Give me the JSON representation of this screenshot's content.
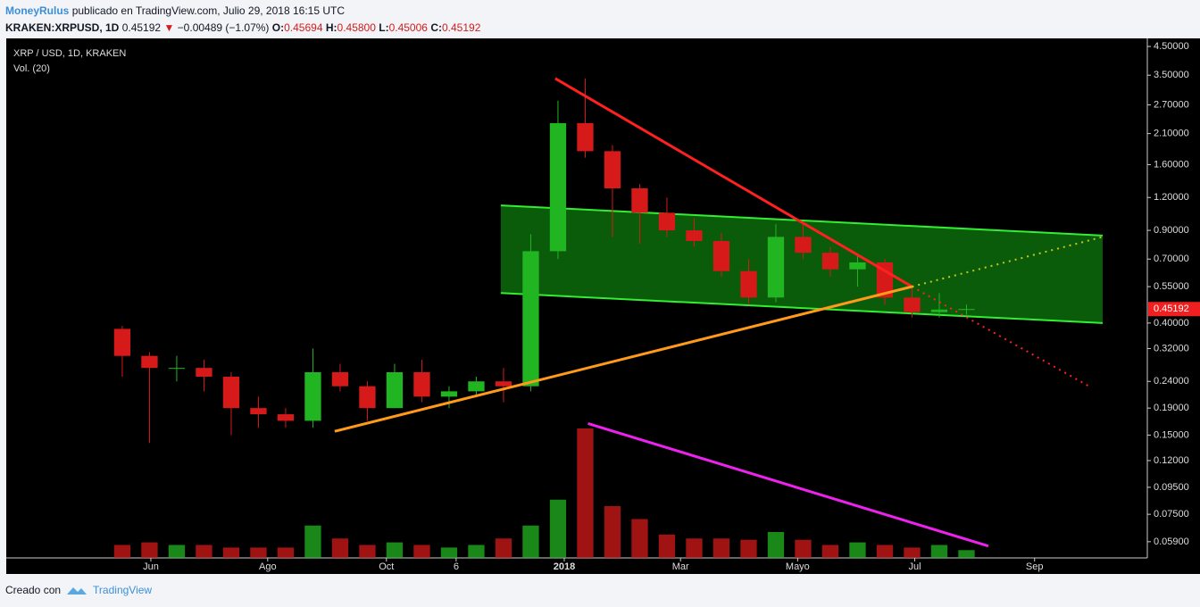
{
  "header": {
    "author": "MoneyRulus",
    "published": "publicado en TradingView.com, Julio 29, 2018 16:15 UTC",
    "symbol": "KRAKEN:XRPUSD, 1D",
    "last": "0.45192",
    "arrow": "▼",
    "change": "−0.00489 (−1.07%)",
    "open_label": "O:",
    "open": "0.45694",
    "high_label": "H:",
    "high": "0.45800",
    "low_label": "L:",
    "low": "0.45006",
    "close_label": "C:",
    "close": "0.45192"
  },
  "chart_data": {
    "type": "candlestick",
    "title": "XRP / USD, 1D, KRAKEN",
    "volume_label": "Vol. (20)",
    "open": [
      0.38,
      0.3,
      0.27,
      0.27,
      0.25,
      0.19,
      0.18,
      0.17,
      0.26,
      0.23,
      0.19,
      0.26,
      0.21,
      0.22,
      0.24,
      0.23,
      0.75,
      2.3,
      1.8,
      1.3,
      1.05,
      0.9,
      0.82,
      0.63,
      0.5,
      0.85,
      0.74,
      0.64,
      0.68,
      0.5,
      0.44,
      0.45
    ],
    "high": [
      0.39,
      0.31,
      0.3,
      0.29,
      0.26,
      0.21,
      0.19,
      0.32,
      0.28,
      0.24,
      0.28,
      0.29,
      0.23,
      0.25,
      0.27,
      0.87,
      2.8,
      3.4,
      1.9,
      1.35,
      1.2,
      1.0,
      0.88,
      0.7,
      0.95,
      0.95,
      0.78,
      0.72,
      0.7,
      0.55,
      0.52,
      0.47
    ],
    "low": [
      0.25,
      0.14,
      0.24,
      0.22,
      0.15,
      0.16,
      0.16,
      0.16,
      0.22,
      0.17,
      0.19,
      0.2,
      0.19,
      0.21,
      0.2,
      0.22,
      0.7,
      1.7,
      0.85,
      0.8,
      0.85,
      0.78,
      0.6,
      0.47,
      0.48,
      0.7,
      0.6,
      0.55,
      0.47,
      0.42,
      0.42,
      0.43
    ],
    "close": [
      0.3,
      0.27,
      0.27,
      0.25,
      0.19,
      0.18,
      0.17,
      0.26,
      0.23,
      0.19,
      0.26,
      0.21,
      0.22,
      0.24,
      0.23,
      0.75,
      2.3,
      1.8,
      1.3,
      1.05,
      0.9,
      0.82,
      0.63,
      0.5,
      0.85,
      0.74,
      0.64,
      0.68,
      0.5,
      0.44,
      0.45,
      0.452
    ],
    "volume": [
      10,
      12,
      10,
      10,
      8,
      8,
      8,
      25,
      15,
      10,
      12,
      10,
      8,
      10,
      15,
      25,
      45,
      100,
      40,
      30,
      18,
      15,
      15,
      14,
      20,
      14,
      10,
      12,
      10,
      8,
      10,
      6
    ],
    "volume_lim": [
      0,
      100
    ],
    "log_scale": true,
    "up_color": "#22b522",
    "down_color": "#d61a1a",
    "ylim": [
      0.0512,
      4.83
    ],
    "yticks": [
      {
        "value": 4.5,
        "label": "4.50000"
      },
      {
        "value": 3.5,
        "label": "3.50000"
      },
      {
        "value": 2.7,
        "label": "2.70000"
      },
      {
        "value": 2.1,
        "label": "2.10000"
      },
      {
        "value": 1.6,
        "label": "1.60000"
      },
      {
        "value": 1.2,
        "label": "1.20000"
      },
      {
        "value": 0.9,
        "label": "0.90000"
      },
      {
        "value": 0.7,
        "label": "0.70000"
      },
      {
        "value": 0.55,
        "label": "0.55000"
      },
      {
        "value": 0.4,
        "label": "0.40000"
      },
      {
        "value": 0.32,
        "label": "0.32000"
      },
      {
        "value": 0.24,
        "label": "0.24000"
      },
      {
        "value": 0.19,
        "label": "0.19000"
      },
      {
        "value": 0.15,
        "label": "0.15000"
      },
      {
        "value": 0.12,
        "label": "0.12000"
      },
      {
        "value": 0.095,
        "label": "0.09500"
      },
      {
        "value": 0.075,
        "label": "0.07500"
      },
      {
        "value": 0.059,
        "label": "0.05900"
      }
    ],
    "last_price": 0.45192,
    "last_color": "#f02020",
    "xlim": [
      -4.26,
      37.64
    ],
    "xticks": [
      {
        "value": 1.05,
        "label": "Jun"
      },
      {
        "value": 5.34,
        "label": "Ago"
      },
      {
        "value": 9.7,
        "label": "Oct"
      },
      {
        "value": 12.26,
        "label": "6"
      },
      {
        "value": 16.23,
        "label": "2018"
      },
      {
        "value": 20.5,
        "label": "Mar"
      },
      {
        "value": 24.8,
        "label": "Mayo"
      },
      {
        "value": 29.1,
        "label": "Jul"
      },
      {
        "value": 33.5,
        "label": "Sep"
      }
    ],
    "channel": {
      "color": "#0a5c0a",
      "edge": "#33ee33",
      "top": [
        13.9,
        1.12,
        36,
        0.86
      ],
      "bottom": [
        13.9,
        0.52,
        36,
        0.4
      ]
    },
    "lines": [
      {
        "color": "#ff2020",
        "points": [
          15.9,
          3.4,
          29,
          0.55
        ],
        "dash": false
      },
      {
        "color": "#ff2020",
        "points": [
          29,
          0.55,
          35.5,
          0.23
        ],
        "dash": true
      },
      {
        "color": "#ff9a1a",
        "points": [
          7.8,
          0.155,
          29,
          0.55
        ],
        "dash": false
      },
      {
        "color": "#c8c81a",
        "points": [
          29,
          0.55,
          36,
          0.85
        ],
        "dash": true
      },
      {
        "color": "#ee22ee",
        "points": [
          17.1,
          0.166,
          31.8,
          0.0568
        ],
        "dash": false
      }
    ]
  },
  "footer": {
    "made_with": "Creado con",
    "brand": "TradingView"
  }
}
